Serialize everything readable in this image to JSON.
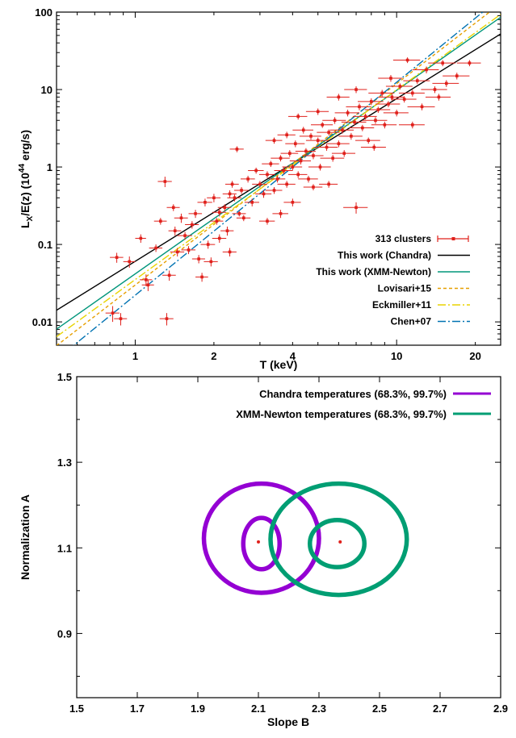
{
  "chart_data": [
    {
      "type": "scatter",
      "xlabel": "T (keV)",
      "ylabel_main": "L",
      "ylabel_sub": "X",
      "ylabel_rest": "/E(z) (10",
      "ylabel_sup": "44",
      "ylabel_end": " erg/s)",
      "log_x": true,
      "log_y": true,
      "xlim": [
        0.5,
        25
      ],
      "ylim": [
        0.005,
        100
      ],
      "x_ticks": [
        1,
        2,
        4,
        10,
        20
      ],
      "x_tick_labels": [
        "1",
        "2",
        "4",
        "10",
        "20"
      ],
      "y_ticks": [
        0.01,
        0.1,
        1,
        10,
        100
      ],
      "y_tick_labels": [
        "0.01",
        "0.1",
        "1",
        "10",
        "100"
      ],
      "legend_position": "bottom-right",
      "series": [
        {
          "name": "313 clusters",
          "color": "#e0201b",
          "kind": "points_errorbars",
          "points": [
            [
              0.82,
              0.013,
              0.05,
              0.003
            ],
            [
              0.88,
              0.011,
              0.05,
              0.002
            ],
            [
              0.85,
              0.068,
              0.05,
              0.01
            ],
            [
              0.95,
              0.06,
              0.05,
              0.01
            ],
            [
              1.05,
              0.12,
              0.05,
              0.015
            ],
            [
              1.1,
              0.035,
              0.06,
              0.006
            ],
            [
              1.12,
              0.03,
              0.06,
              0.005
            ],
            [
              1.2,
              0.09,
              0.07,
              0.01
            ],
            [
              1.25,
              0.2,
              0.07,
              0.02
            ],
            [
              1.3,
              0.65,
              0.08,
              0.1
            ],
            [
              1.32,
              0.011,
              0.08,
              0.002
            ],
            [
              1.35,
              0.04,
              0.08,
              0.006
            ],
            [
              1.4,
              0.3,
              0.08,
              0.03
            ],
            [
              1.42,
              0.15,
              0.08,
              0.02
            ],
            [
              1.45,
              0.08,
              0.09,
              0.01
            ],
            [
              1.5,
              0.22,
              0.09,
              0.03
            ],
            [
              1.55,
              0.13,
              0.1,
              0.015
            ],
            [
              1.6,
              0.085,
              0.1,
              0.01
            ],
            [
              1.65,
              0.18,
              0.1,
              0.02
            ],
            [
              1.7,
              0.25,
              0.1,
              0.03
            ],
            [
              1.75,
              0.065,
              0.1,
              0.008
            ],
            [
              1.8,
              0.038,
              0.1,
              0.005
            ],
            [
              1.85,
              0.35,
              0.12,
              0.04
            ],
            [
              1.9,
              0.1,
              0.12,
              0.012
            ],
            [
              2.0,
              0.4,
              0.12,
              0.05
            ],
            [
              2.05,
              0.2,
              0.12,
              0.02
            ],
            [
              2.1,
              0.26,
              0.13,
              0.03
            ],
            [
              2.2,
              0.3,
              0.13,
              0.03
            ],
            [
              2.25,
              0.15,
              0.13,
              0.02
            ],
            [
              2.3,
              0.45,
              0.14,
              0.05
            ],
            [
              2.35,
              0.6,
              0.14,
              0.06
            ],
            [
              2.4,
              0.4,
              0.15,
              0.04
            ],
            [
              2.45,
              1.7,
              0.15,
              0.15
            ],
            [
              2.5,
              0.25,
              0.15,
              0.02
            ],
            [
              2.55,
              0.5,
              0.16,
              0.05
            ],
            [
              2.6,
              0.22,
              0.16,
              0.02
            ],
            [
              2.7,
              0.7,
              0.17,
              0.07
            ],
            [
              2.8,
              0.35,
              0.18,
              0.04
            ],
            [
              2.9,
              0.9,
              0.2,
              0.08
            ],
            [
              3.0,
              0.6,
              0.2,
              0.06
            ],
            [
              3.1,
              0.45,
              0.22,
              0.05
            ],
            [
              3.2,
              0.8,
              0.22,
              0.08
            ],
            [
              3.3,
              1.1,
              0.25,
              0.1
            ],
            [
              3.4,
              0.5,
              0.25,
              0.05
            ],
            [
              3.5,
              0.7,
              0.25,
              0.07
            ],
            [
              3.6,
              1.3,
              0.3,
              0.12
            ],
            [
              3.7,
              0.9,
              0.3,
              0.09
            ],
            [
              3.8,
              0.6,
              0.3,
              0.06
            ],
            [
              3.9,
              1.5,
              0.3,
              0.15
            ],
            [
              4.0,
              1.0,
              0.35,
              0.1
            ],
            [
              4.1,
              2.0,
              0.35,
              0.2
            ],
            [
              4.2,
              0.8,
              0.35,
              0.08
            ],
            [
              4.3,
              1.2,
              0.4,
              0.12
            ],
            [
              4.4,
              3.0,
              0.4,
              0.3
            ],
            [
              4.5,
              1.6,
              0.4,
              0.15
            ],
            [
              4.6,
              0.7,
              0.4,
              0.07
            ],
            [
              4.7,
              2.5,
              0.45,
              0.25
            ],
            [
              4.8,
              1.4,
              0.45,
              0.14
            ],
            [
              5.0,
              2.2,
              0.5,
              0.2
            ],
            [
              5.1,
              1.0,
              0.5,
              0.1
            ],
            [
              5.2,
              3.5,
              0.5,
              0.3
            ],
            [
              5.4,
              1.8,
              0.55,
              0.18
            ],
            [
              5.5,
              2.8,
              0.55,
              0.25
            ],
            [
              5.7,
              1.3,
              0.6,
              0.13
            ],
            [
              5.8,
              4.0,
              0.6,
              0.4
            ],
            [
              6.0,
              2.0,
              0.6,
              0.2
            ],
            [
              6.2,
              3.0,
              0.65,
              0.3
            ],
            [
              6.3,
              1.5,
              0.65,
              0.15
            ],
            [
              6.5,
              5.0,
              0.7,
              0.5
            ],
            [
              6.7,
              2.5,
              0.7,
              0.25
            ],
            [
              6.9,
              3.8,
              0.75,
              0.35
            ],
            [
              7.0,
              0.3,
              0.75,
              0.05
            ],
            [
              7.2,
              6.0,
              0.8,
              0.6
            ],
            [
              7.4,
              3.2,
              0.8,
              0.3
            ],
            [
              7.6,
              4.5,
              0.8,
              0.4
            ],
            [
              7.8,
              2.2,
              0.85,
              0.2
            ],
            [
              8.0,
              7.0,
              0.9,
              0.7
            ],
            [
              8.3,
              4.0,
              0.9,
              0.4
            ],
            [
              8.5,
              5.5,
              0.95,
              0.5
            ],
            [
              8.8,
              9.0,
              1.0,
              0.9
            ],
            [
              9.0,
              3.5,
              1.0,
              0.35
            ],
            [
              9.3,
              6.5,
              1.0,
              0.6
            ],
            [
              9.6,
              8.0,
              1.1,
              0.8
            ],
            [
              10.0,
              5.0,
              1.1,
              0.5
            ],
            [
              10.3,
              11.0,
              1.2,
              1.0
            ],
            [
              10.7,
              7.5,
              1.2,
              0.7
            ],
            [
              11.0,
              24.0,
              1.3,
              2.0
            ],
            [
              11.5,
              9.0,
              1.3,
              0.9
            ],
            [
              12.0,
              13.0,
              1.4,
              1.2
            ],
            [
              12.5,
              6.0,
              1.5,
              0.6
            ],
            [
              13.0,
              18.0,
              1.5,
              1.8
            ],
            [
              14.0,
              10.0,
              1.6,
              1.0
            ],
            [
              15.0,
              22.0,
              1.8,
              2.0
            ],
            [
              15.5,
              12.0,
              1.8,
              1.2
            ],
            [
              17.0,
              15.0,
              2.0,
              1.5
            ],
            [
              19.0,
              22.0,
              2.0,
              2.0
            ],
            [
              3.2,
              0.2,
              0.22,
              0.02
            ],
            [
              3.6,
              0.25,
              0.25,
              0.03
            ],
            [
              4.0,
              0.35,
              0.3,
              0.04
            ],
            [
              4.8,
              0.55,
              0.4,
              0.05
            ],
            [
              5.5,
              0.6,
              0.45,
              0.06
            ],
            [
              2.3,
              0.08,
              0.14,
              0.01
            ],
            [
              2.1,
              0.12,
              0.13,
              0.015
            ],
            [
              1.95,
              0.06,
              0.12,
              0.008
            ],
            [
              3.4,
              2.2,
              0.25,
              0.2
            ],
            [
              3.8,
              2.6,
              0.3,
              0.25
            ],
            [
              4.2,
              4.5,
              0.35,
              0.4
            ],
            [
              5.0,
              5.2,
              0.5,
              0.5
            ],
            [
              6.0,
              8.0,
              0.6,
              0.8
            ],
            [
              7.0,
              10.0,
              0.7,
              1.0
            ],
            [
              9.5,
              14.0,
              1.0,
              1.4
            ],
            [
              8.2,
              1.8,
              0.9,
              0.18
            ],
            [
              11.5,
              3.5,
              1.3,
              0.35
            ],
            [
              14.5,
              8.0,
              1.6,
              0.8
            ]
          ]
        },
        {
          "name": "This work (Chandra)",
          "color": "#000000",
          "kind": "line",
          "dash": "",
          "A": 1.114,
          "B": 2.1
        },
        {
          "name": "This work (XMM-Newton)",
          "color": "#00957a",
          "kind": "line",
          "dash": "",
          "A": 1.114,
          "B": 2.37
        },
        {
          "name": "Lovisari+15",
          "color": "#e69f00",
          "kind": "line",
          "dash": "4,3",
          "A": 1.1,
          "B": 2.6
        },
        {
          "name": "Eckmiller+11",
          "color": "#e8d400",
          "kind": "line",
          "dash": "10,3,2,3",
          "A": 1.05,
          "B": 2.45
        },
        {
          "name": "Chen+07",
          "color": "#0072b2",
          "kind": "line",
          "dash": "10,3,2,3",
          "A": 1.0,
          "B": 2.75
        }
      ],
      "pivot_T": 4.0
    },
    {
      "type": "scatter",
      "xlabel": "Slope B",
      "ylabel": "Normalization A",
      "xlim": [
        1.5,
        2.9
      ],
      "ylim": [
        0.75,
        1.5
      ],
      "x_ticks": [
        1.5,
        1.7,
        1.9,
        2.1,
        2.3,
        2.5,
        2.7,
        2.9
      ],
      "x_tick_labels": [
        "1.5",
        "1.7",
        "1.9",
        "2.1",
        "2.3",
        "2.5",
        "2.7",
        "2.9"
      ],
      "y_ticks": [
        0.9,
        1.1,
        1.3,
        1.5
      ],
      "y_tick_labels": [
        "0.9",
        "1.1",
        "1.3",
        "1.5"
      ],
      "legend_position": "top-right",
      "series": [
        {
          "name": "Chandra temperatures (68.3%, 99.7%)",
          "color": "#9400d3",
          "center": [
            2.1,
            1.114
          ],
          "contours": [
            {
              "b_min": 2.05,
              "b_max": 2.17,
              "a_min": 1.05,
              "a_max": 1.17
            },
            {
              "b_min": 1.92,
              "b_max": 2.3,
              "a_min": 0.995,
              "a_max": 1.25
            }
          ]
        },
        {
          "name": "XMM-Newton temperatures (68.3%, 99.7%)",
          "color": "#009e73",
          "center": [
            2.37,
            1.114
          ],
          "contours": [
            {
              "b_min": 2.27,
              "b_max": 2.45,
              "a_min": 1.055,
              "a_max": 1.165
            },
            {
              "b_min": 2.14,
              "b_max": 2.59,
              "a_min": 0.99,
              "a_max": 1.25
            }
          ]
        }
      ]
    }
  ]
}
